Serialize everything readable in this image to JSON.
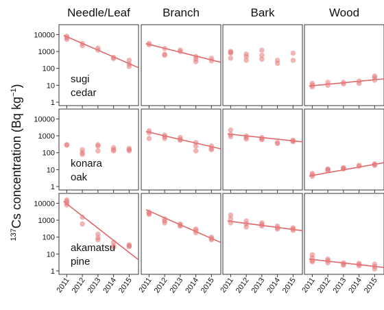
{
  "chart_data": {
    "type": "scatter",
    "ylabel": {
      "sup": "137",
      "main": "Cs concentration (Bq kg",
      "sup2": "−1",
      "end": ")"
    },
    "columns": [
      "Needle/Leaf",
      "Branch",
      "Bark",
      "Wood"
    ],
    "rows": [
      {
        "label_lines": [
          "sugi",
          "cedar"
        ]
      },
      {
        "label_lines": [
          "konara",
          "oak"
        ]
      },
      {
        "label_lines": [
          "akamatsu",
          "pine"
        ]
      }
    ],
    "x_ticks": [
      "2011",
      "2012",
      "2013",
      "2014",
      "2015"
    ],
    "y_scale": "log",
    "y_ticks": [
      {
        "value": 10000,
        "label": "10000"
      },
      {
        "value": 1000,
        "label": "1000"
      },
      {
        "value": 100,
        "label": "100"
      },
      {
        "value": 10,
        "label": "10"
      },
      {
        "value": 1,
        "label": "1"
      }
    ],
    "ylim": [
      1,
      20000
    ],
    "xlim": [
      2010.5,
      2015.6
    ],
    "colors": {
      "points": "#e8787a",
      "fit_line": "#e06769",
      "frame": "#333333"
    },
    "panels": [
      {
        "row": 0,
        "col": 0,
        "points": [
          [
            2011,
            8000
          ],
          [
            2011,
            6500
          ],
          [
            2011,
            5200
          ],
          [
            2012,
            3000
          ],
          [
            2012,
            2200
          ],
          [
            2013,
            1600
          ],
          [
            2013,
            1200
          ],
          [
            2014,
            450
          ],
          [
            2014,
            380
          ],
          [
            2015,
            300
          ],
          [
            2015,
            180
          ],
          [
            2015,
            130
          ]
        ],
        "fit": [
          [
            2010.8,
            9000
          ],
          [
            2015.6,
            110
          ]
        ]
      },
      {
        "row": 0,
        "col": 1,
        "points": [
          [
            2011,
            3000
          ],
          [
            2011,
            2500
          ],
          [
            2012,
            1500
          ],
          [
            2012,
            700
          ],
          [
            2012,
            600
          ],
          [
            2013,
            1200
          ],
          [
            2013,
            1000
          ],
          [
            2014,
            500
          ],
          [
            2014,
            350
          ],
          [
            2014,
            250
          ],
          [
            2015,
            400
          ],
          [
            2015,
            280
          ]
        ],
        "fit": [
          [
            2010.8,
            2900
          ],
          [
            2015.6,
            230
          ]
        ]
      },
      {
        "row": 0,
        "col": 2,
        "points": [
          [
            2011,
            1000
          ],
          [
            2011,
            900
          ],
          [
            2011,
            800
          ],
          [
            2011,
            400
          ],
          [
            2012,
            700
          ],
          [
            2012,
            500
          ],
          [
            2012,
            300
          ],
          [
            2013,
            1200
          ],
          [
            2013,
            600
          ],
          [
            2013,
            350
          ],
          [
            2014,
            300
          ],
          [
            2014,
            200
          ],
          [
            2015,
            800
          ],
          [
            2015,
            300
          ]
        ],
        "fit": null
      },
      {
        "row": 0,
        "col": 3,
        "points": [
          [
            2011,
            13
          ],
          [
            2011,
            10
          ],
          [
            2011,
            8
          ],
          [
            2012,
            15
          ],
          [
            2012,
            10
          ],
          [
            2013,
            15
          ],
          [
            2013,
            12
          ],
          [
            2014,
            18
          ],
          [
            2014,
            13
          ],
          [
            2015,
            35
          ],
          [
            2015,
            28
          ],
          [
            2015,
            20
          ]
        ],
        "fit": [
          [
            2010.8,
            9
          ],
          [
            2015.6,
            24
          ]
        ]
      },
      {
        "row": 1,
        "col": 0,
        "points": [
          [
            2011,
            300
          ],
          [
            2011,
            280
          ],
          [
            2012,
            150
          ],
          [
            2012,
            100
          ],
          [
            2012,
            80
          ],
          [
            2013,
            300
          ],
          [
            2013,
            250
          ],
          [
            2013,
            130
          ],
          [
            2014,
            200
          ],
          [
            2014,
            150
          ],
          [
            2014,
            130
          ],
          [
            2015,
            180
          ],
          [
            2015,
            150
          ],
          [
            2015,
            130
          ]
        ],
        "fit": null
      },
      {
        "row": 1,
        "col": 1,
        "points": [
          [
            2011,
            2000
          ],
          [
            2011,
            1500
          ],
          [
            2011,
            700
          ],
          [
            2012,
            1100
          ],
          [
            2012,
            900
          ],
          [
            2012,
            700
          ],
          [
            2013,
            800
          ],
          [
            2013,
            600
          ],
          [
            2013,
            550
          ],
          [
            2014,
            400
          ],
          [
            2014,
            250
          ],
          [
            2014,
            130
          ],
          [
            2015,
            250
          ],
          [
            2015,
            180
          ],
          [
            2015,
            150
          ]
        ],
        "fit": [
          [
            2010.8,
            1800
          ],
          [
            2015.6,
            170
          ]
        ]
      },
      {
        "row": 1,
        "col": 2,
        "points": [
          [
            2011,
            2200
          ],
          [
            2011,
            1200
          ],
          [
            2011,
            900
          ],
          [
            2012,
            1000
          ],
          [
            2012,
            800
          ],
          [
            2012,
            650
          ],
          [
            2013,
            800
          ],
          [
            2013,
            650
          ],
          [
            2013,
            600
          ],
          [
            2014,
            400
          ],
          [
            2014,
            350
          ],
          [
            2015,
            550
          ],
          [
            2015,
            500
          ],
          [
            2015,
            450
          ]
        ],
        "fit": [
          [
            2010.8,
            1300
          ],
          [
            2015.6,
            440
          ]
        ]
      },
      {
        "row": 1,
        "col": 3,
        "points": [
          [
            2011,
            6
          ],
          [
            2011,
            5
          ],
          [
            2011,
            4
          ],
          [
            2012,
            11
          ],
          [
            2012,
            10
          ],
          [
            2012,
            9
          ],
          [
            2013,
            13
          ],
          [
            2013,
            12
          ],
          [
            2013,
            11
          ],
          [
            2014,
            18
          ],
          [
            2014,
            16
          ],
          [
            2015,
            22
          ],
          [
            2015,
            20
          ],
          [
            2015,
            18
          ]
        ],
        "fit": [
          [
            2010.8,
            4.2
          ],
          [
            2015.6,
            26
          ]
        ]
      },
      {
        "row": 2,
        "col": 0,
        "points": [
          [
            2011,
            16000
          ],
          [
            2011,
            13000
          ],
          [
            2011,
            10000
          ],
          [
            2011,
            8000
          ],
          [
            2012,
            1500
          ],
          [
            2012,
            600
          ],
          [
            2013,
            150
          ],
          [
            2013,
            90
          ],
          [
            2013,
            70
          ],
          [
            2014,
            50
          ],
          [
            2014,
            30
          ],
          [
            2014,
            25
          ],
          [
            2015,
            35
          ],
          [
            2015,
            30
          ],
          [
            2015,
            28
          ]
        ],
        "fit": [
          [
            2010.8,
            13000
          ],
          [
            2015.6,
            4.5
          ]
        ]
      },
      {
        "row": 2,
        "col": 1,
        "points": [
          [
            2011,
            3000
          ],
          [
            2011,
            2500
          ],
          [
            2011,
            2200
          ],
          [
            2012,
            1200
          ],
          [
            2012,
            900
          ],
          [
            2012,
            700
          ],
          [
            2013,
            600
          ],
          [
            2013,
            500
          ],
          [
            2013,
            450
          ],
          [
            2014,
            300
          ],
          [
            2014,
            250
          ],
          [
            2014,
            180
          ],
          [
            2015,
            100
          ],
          [
            2015,
            80
          ],
          [
            2015,
            70
          ]
        ],
        "fit": [
          [
            2010.8,
            4200
          ],
          [
            2015.6,
            48
          ]
        ]
      },
      {
        "row": 2,
        "col": 2,
        "points": [
          [
            2011,
            2000
          ],
          [
            2011,
            1200
          ],
          [
            2011,
            700
          ],
          [
            2012,
            900
          ],
          [
            2012,
            600
          ],
          [
            2012,
            400
          ],
          [
            2013,
            700
          ],
          [
            2013,
            550
          ],
          [
            2013,
            450
          ],
          [
            2014,
            450
          ],
          [
            2014,
            350
          ],
          [
            2014,
            300
          ],
          [
            2015,
            350
          ],
          [
            2015,
            300
          ],
          [
            2015,
            250
          ]
        ],
        "fit": [
          [
            2010.8,
            900
          ],
          [
            2015.6,
            240
          ]
        ]
      },
      {
        "row": 2,
        "col": 3,
        "points": [
          [
            2011,
            9
          ],
          [
            2011,
            6
          ],
          [
            2011,
            4
          ],
          [
            2011,
            3.5
          ],
          [
            2012,
            5
          ],
          [
            2012,
            4
          ],
          [
            2012,
            3
          ],
          [
            2013,
            3
          ],
          [
            2013,
            2.5
          ],
          [
            2013,
            2.2
          ],
          [
            2014,
            2.8
          ],
          [
            2014,
            2.4
          ],
          [
            2014,
            2
          ],
          [
            2015,
            2.5
          ],
          [
            2015,
            1.8
          ],
          [
            2015,
            1.3
          ]
        ],
        "fit": [
          [
            2010.8,
            5
          ],
          [
            2015.6,
            1.6
          ]
        ]
      }
    ]
  }
}
